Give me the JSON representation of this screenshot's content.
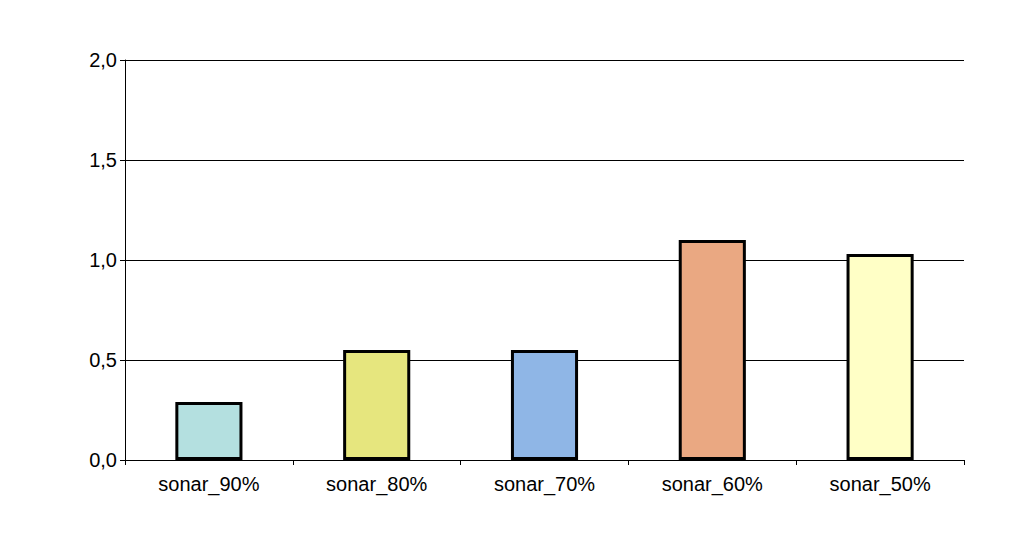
{
  "chart_data": {
    "type": "bar",
    "categories": [
      "sonar_90%",
      "sonar_80%",
      "sonar_70%",
      "sonar_60%",
      "sonar_50%"
    ],
    "values": [
      0.29,
      0.55,
      0.55,
      1.1,
      1.03
    ],
    "colors": [
      "#b4e0e0",
      "#e6e67e",
      "#8fb6e6",
      "#eaa882",
      "#ffffc6"
    ],
    "ylim": [
      0,
      2
    ],
    "yticks": [
      {
        "value": 0,
        "label": "0,0"
      },
      {
        "value": 0.5,
        "label": "0,5"
      },
      {
        "value": 1,
        "label": "1,0"
      },
      {
        "value": 1.5,
        "label": "1,5"
      },
      {
        "value": 2,
        "label": "2,0"
      }
    ],
    "grid": true
  }
}
